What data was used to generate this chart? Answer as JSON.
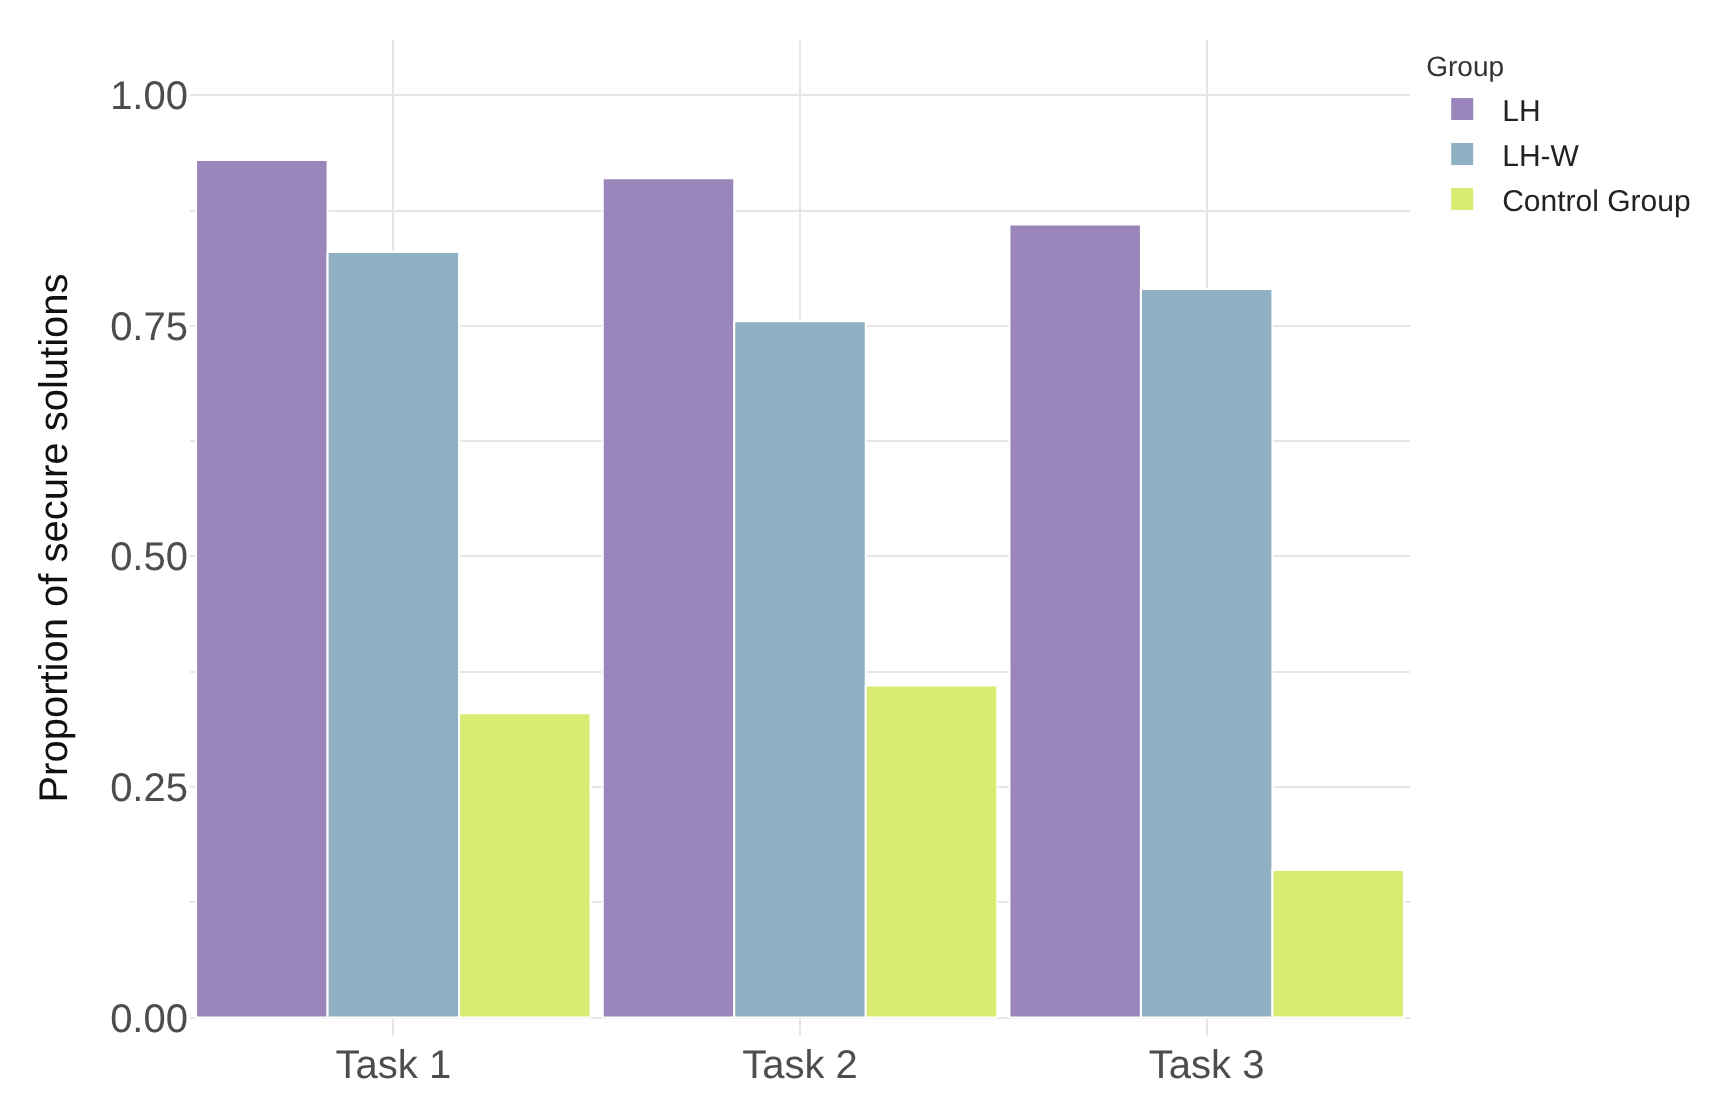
{
  "chart_data": {
    "type": "bar",
    "ylabel": "Proportion of secure solutions",
    "legend_title": "Group",
    "categories": [
      "Task 1",
      "Task 2",
      "Task 3"
    ],
    "series": [
      {
        "name": "LH",
        "color": "#9a86ba",
        "values": [
          0.93,
          0.91,
          0.86
        ]
      },
      {
        "name": "LH-W",
        "color": "#8fb0c3",
        "values": [
          0.83,
          0.755,
          0.79
        ]
      },
      {
        "name": "Control Group",
        "color": "#d9ec72",
        "values": [
          0.33,
          0.36,
          0.16
        ]
      }
    ],
    "ylim": [
      -0.02,
      1.06
    ],
    "yticks": [
      {
        "value": 0,
        "label": "0.00"
      },
      {
        "value": 0.125,
        "label": null
      },
      {
        "value": 0.25,
        "label": "0.25"
      },
      {
        "value": 0.375,
        "label": null
      },
      {
        "value": 0.5,
        "label": "0.50"
      },
      {
        "value": 0.625,
        "label": null
      },
      {
        "value": 0.75,
        "label": "0.75"
      },
      {
        "value": 0.875,
        "label": null
      },
      {
        "value": 1,
        "label": "1.00"
      }
    ],
    "grid": true,
    "legend": "right"
  }
}
